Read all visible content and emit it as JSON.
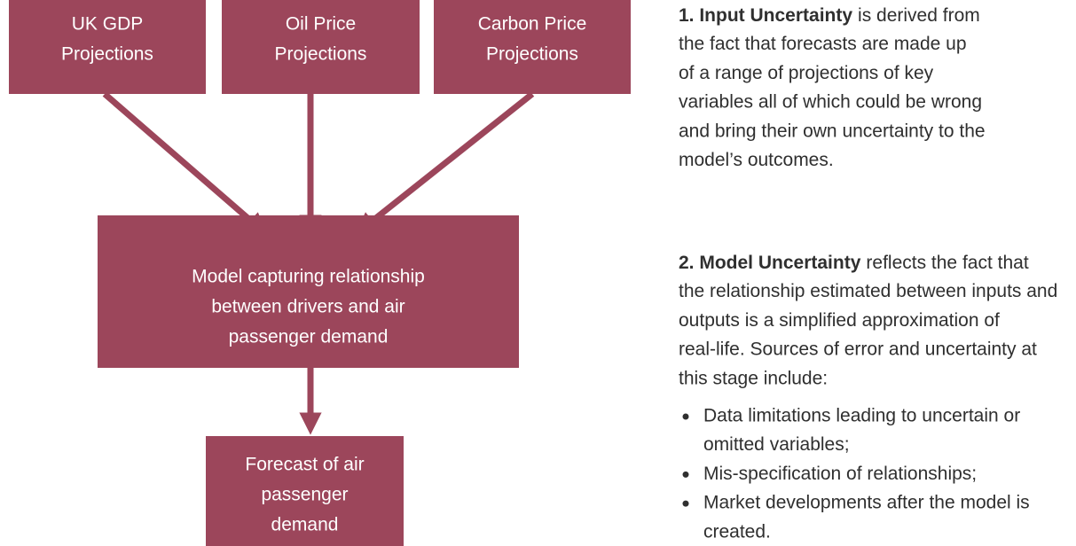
{
  "nodes": [
    {
      "lines": [
        "UK GDP",
        "Projections"
      ]
    },
    {
      "lines": [
        "Oil Price",
        "Projections"
      ]
    },
    {
      "lines": [
        "Carbon Price",
        "Projections"
      ]
    },
    {
      "lines": [
        "Model capturing relationship",
        "between drivers and air",
        "passenger demand"
      ]
    },
    {
      "lines": [
        "Forecast of air",
        "passenger",
        "demand"
      ]
    }
  ],
  "notes": {
    "input": {
      "bold": "1. Input Uncertainty",
      "lines": [
        "is derived from",
        "the fact that forecasts are made up",
        "of a range of projections of key",
        "variables all of which could be wrong",
        "and bring their own uncertainty to the",
        "model’s outcomes."
      ]
    },
    "model": {
      "bold": "2. Model Uncertainty",
      "lines": [
        "reflects the fact that",
        "the relationship estimated between inputs and",
        "outputs is a simplified approximation of",
        "real-life. Sources of error and uncertainty at",
        "this stage include:"
      ]
    },
    "bullets": [
      [
        "Data limitations leading to uncertain or",
        "omitted variables;"
      ],
      [
        "Mis-specification of relationships;"
      ],
      [
        "Market developments after the model is",
        "created."
      ]
    ]
  }
}
